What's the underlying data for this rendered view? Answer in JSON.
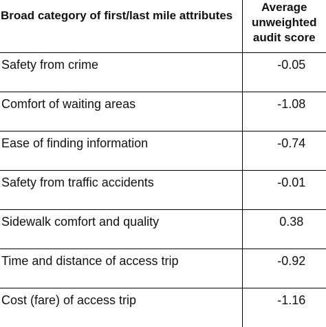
{
  "table": {
    "headers": {
      "category": "Broad category of first/last mile attributes",
      "score": "Average unweighted audit score"
    },
    "rows": [
      {
        "category": "Safety from crime",
        "score": "-0.05"
      },
      {
        "category": "Comfort of waiting areas",
        "score": "-1.08"
      },
      {
        "category": "Ease of finding information",
        "score": "-0.74"
      },
      {
        "category": "Safety from traffic accidents",
        "score": "-0.01"
      },
      {
        "category": "Sidewalk comfort and quality",
        "score": "0.38"
      },
      {
        "category": "Time and distance of access trip",
        "score": "-0.92"
      },
      {
        "category": "Cost (fare) of access trip",
        "score": "-1.16"
      }
    ]
  }
}
